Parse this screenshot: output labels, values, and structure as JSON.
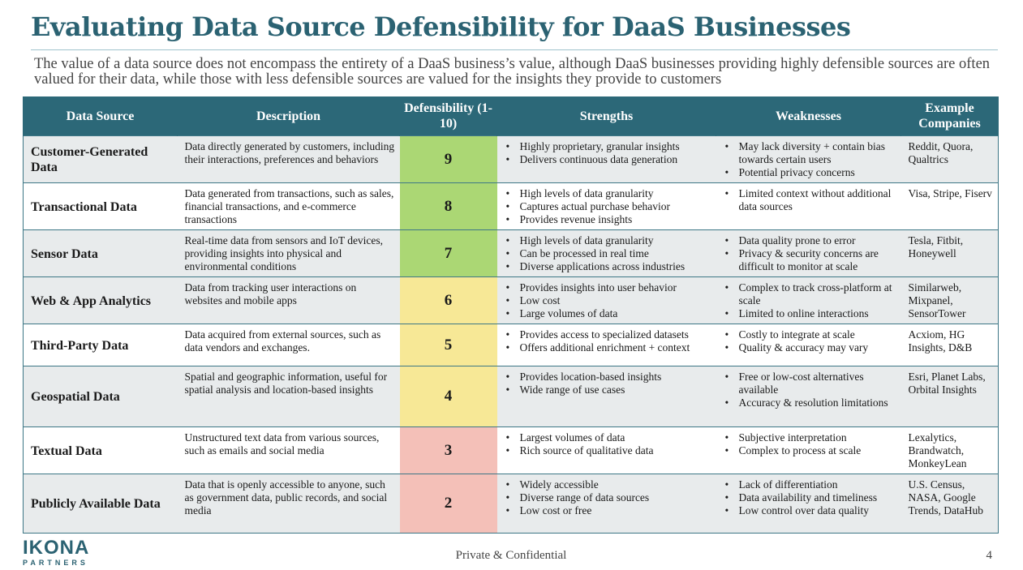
{
  "title": "Evaluating Data Source Defensibility for DaaS Businesses",
  "subtitle": "The value of a data source does not encompass the entirety of a DaaS business’s value, although DaaS businesses providing highly defensible sources are often valued for their data, while those with less defensible sources are valued for the insights they provide to customers",
  "table": {
    "headers": {
      "source": "Data Source",
      "description": "Description",
      "defensibility": "Defensibility (1-10)",
      "strengths": "Strengths",
      "weaknesses": "Weaknesses",
      "companies": "Example Companies"
    },
    "rows": [
      {
        "name": "Customer-Generated Data",
        "description": "Data directly generated by customers, including their interactions, preferences and behaviors",
        "score": "9",
        "strengths": [
          "Highly proprietary, granular insights",
          "Delivers continuous data generation"
        ],
        "weaknesses": [
          "May lack diversity + contain bias towards certain users",
          "Potential privacy concerns"
        ],
        "companies": "Reddit, Quora, Qualtrics"
      },
      {
        "name": "Transactional Data",
        "description": "Data generated from transactions, such as sales, financial transactions, and e-commerce transactions",
        "score": "8",
        "strengths": [
          "High levels of data granularity",
          "Captures actual purchase behavior",
          "Provides revenue insights"
        ],
        "weaknesses": [
          "Limited context without additional data sources"
        ],
        "companies": "Visa, Stripe, Fiserv"
      },
      {
        "name": "Sensor Data",
        "description": "Real-time data from sensors and IoT devices, providing insights into physical and environmental conditions",
        "score": "7",
        "strengths": [
          "High levels of data granularity",
          "Can be processed in real time",
          "Diverse applications across industries"
        ],
        "weaknesses": [
          "Data quality prone to error",
          "Privacy & security concerns are difficult to monitor at scale"
        ],
        "companies": "Tesla, Fitbit, Honeywell"
      },
      {
        "name": "Web & App Analytics",
        "description": "Data from tracking user interactions on websites and mobile apps",
        "score": "6",
        "strengths": [
          "Provides insights into user behavior",
          "Low cost",
          "Large volumes of data"
        ],
        "weaknesses": [
          "Complex to track cross-platform at scale",
          "Limited to online interactions"
        ],
        "companies": "Similarweb, Mixpanel, SensorTower"
      },
      {
        "name": "Third-Party Data",
        "description": "Data acquired from external sources, such as data vendors and exchanges.",
        "score": "5",
        "strengths": [
          "Provides access to specialized datasets",
          "Offers additional enrichment + context"
        ],
        "weaknesses": [
          "Costly to integrate at scale",
          "Quality & accuracy may vary"
        ],
        "companies": "Acxiom, HG Insights, D&B"
      },
      {
        "name": "Geospatial Data",
        "description": "Spatial and geographic information, useful for spatial analysis and location-based insights",
        "score": "4",
        "strengths": [
          "Provides location-based insights",
          "Wide range of use cases"
        ],
        "weaknesses": [
          "Free or low-cost alternatives available",
          "Accuracy & resolution limitations"
        ],
        "companies": "Esri, Planet Labs, Orbital Insights"
      },
      {
        "name": "Textual Data",
        "description": "Unstructured text data from various sources, such as emails and social media",
        "score": "3",
        "strengths": [
          "Largest volumes of data",
          "Rich source of qualitative data"
        ],
        "weaknesses": [
          "Subjective interpretation",
          "Complex to process at scale"
        ],
        "companies": "Lexalytics, Brandwatch, MonkeyLean"
      },
      {
        "name": "Publicly Available Data",
        "description": "Data that is openly accessible to anyone, such as government data, public records, and social media",
        "score": "2",
        "strengths": [
          "Widely accessible",
          "Diverse range of data sources",
          "Low cost or free"
        ],
        "weaknesses": [
          "Lack of differentiation",
          "Data availability and timeliness",
          "Low control over data quality"
        ],
        "companies": "U.S. Census, NASA, Google Trends, DataHub"
      }
    ]
  },
  "colors": {
    "brand": "#2b6272",
    "score_high": "#abd774",
    "score_mid": "#f7e896",
    "score_low": "#f4c0b8"
  },
  "logo": {
    "main": "IKONA",
    "sub": "PARTNERS"
  },
  "footer": {
    "text": "Private & Confidential",
    "page": "4"
  }
}
